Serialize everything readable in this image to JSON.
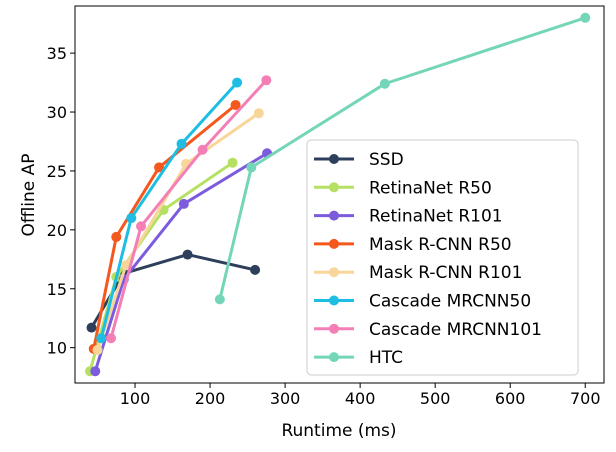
{
  "chart_data": {
    "type": "line",
    "title": "",
    "xlabel": "Runtime (ms)",
    "ylabel": "Offline AP",
    "xlim": [
      20,
      725
    ],
    "ylim": [
      7,
      39
    ],
    "xticks": [
      100,
      200,
      300,
      400,
      500,
      600,
      700
    ],
    "yticks": [
      10,
      15,
      20,
      25,
      30,
      35
    ],
    "grid": false,
    "legend_position": "lower-right",
    "series": [
      {
        "name": "SSD",
        "color": "#2e3f5c",
        "x": [
          42,
          85,
          170,
          260
        ],
        "y": [
          11.7,
          16.3,
          17.9,
          16.6
        ]
      },
      {
        "name": "RetinaNet R50",
        "color": "#b5e061",
        "x": [
          40,
          75,
          138,
          230
        ],
        "y": [
          8.0,
          16.0,
          21.7,
          25.7
        ]
      },
      {
        "name": "RetinaNet R101",
        "color": "#7c5cdc",
        "x": [
          47,
          85,
          165,
          276
        ],
        "y": [
          8.0,
          15.8,
          22.2,
          26.5
        ]
      },
      {
        "name": "Mask R-CNN R50",
        "color": "#f4581c",
        "x": [
          45,
          75,
          132,
          234
        ],
        "y": [
          9.9,
          19.4,
          25.3,
          30.6
        ]
      },
      {
        "name": "Mask R-CNN R101",
        "color": "#f8d69a",
        "x": [
          50,
          88,
          168,
          265
        ],
        "y": [
          9.8,
          17.0,
          25.6,
          29.9
        ]
      },
      {
        "name": "Cascade MRCNN50",
        "color": "#1dbde4",
        "x": [
          55,
          95,
          162,
          236
        ],
        "y": [
          10.8,
          21.0,
          27.3,
          32.5
        ]
      },
      {
        "name": "Cascade MRCNN101",
        "color": "#f47fb6",
        "x": [
          68,
          108,
          190,
          275
        ],
        "y": [
          10.8,
          20.3,
          26.8,
          32.7
        ]
      },
      {
        "name": "HTC",
        "color": "#74d6b8",
        "x": [
          213,
          255,
          433,
          700
        ],
        "y": [
          14.1,
          25.3,
          32.4,
          38.0
        ]
      }
    ]
  }
}
